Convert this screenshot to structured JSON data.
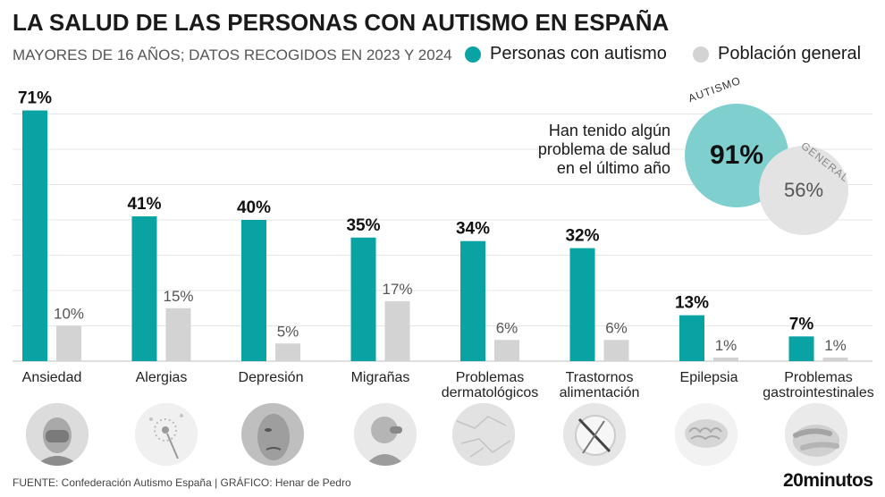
{
  "header": {
    "title": "LA SALUD DE LAS PERSONAS CON AUTISMO EN ESPAÑA",
    "subtitle": "MAYORES DE 16 AÑOS; DATOS RECOGIDOS EN 2023 Y 2024"
  },
  "colors": {
    "autism": "#0aa3a3",
    "general": "#d3d3d3",
    "grid": "#e6e6e6"
  },
  "chart_data": {
    "type": "bar",
    "categories": [
      [
        "Ansiedad"
      ],
      [
        "Alergias"
      ],
      [
        "Depresión"
      ],
      [
        "Migrañas"
      ],
      [
        "Problemas",
        "dermatológicos"
      ],
      [
        "Trastornos",
        "alimentación"
      ],
      [
        "Epilepsia"
      ],
      [
        "Problemas",
        "gastrointestinales"
      ]
    ],
    "series": [
      {
        "name": "Personas con autismo",
        "values": [
          71,
          41,
          40,
          35,
          34,
          32,
          13,
          7
        ],
        "labels": [
          "71%",
          "41%",
          "40%",
          "35%",
          "34%",
          "32%",
          "13%",
          "7%"
        ]
      },
      {
        "name": "Población general",
        "values": [
          10,
          15,
          5,
          17,
          6,
          6,
          1,
          1
        ],
        "labels": [
          "10%",
          "15%",
          "5%",
          "17%",
          "6%",
          "6%",
          "1%",
          "1%"
        ]
      }
    ],
    "ylim": [
      0,
      75
    ],
    "grid": true,
    "legend": "top-right"
  },
  "summary": {
    "text_lines": [
      "Han tenido algún",
      "problema de salud",
      "en el último año"
    ],
    "autism_label": "AUTISMO",
    "autism_value": "91%",
    "general_label": "GENERAL",
    "general_value": "56%"
  },
  "icons": [
    "face-hands-icon",
    "dandelion-icon",
    "sad-face-icon",
    "headache-icon",
    "skin-texture-icon",
    "plate-cutlery-icon",
    "brain-icon",
    "stomach-hands-icon"
  ],
  "footer": {
    "source": "FUENTE: Confederación Autismo España  |  GRÁFICO: Henar de Pedro",
    "brand": "20minutos"
  }
}
